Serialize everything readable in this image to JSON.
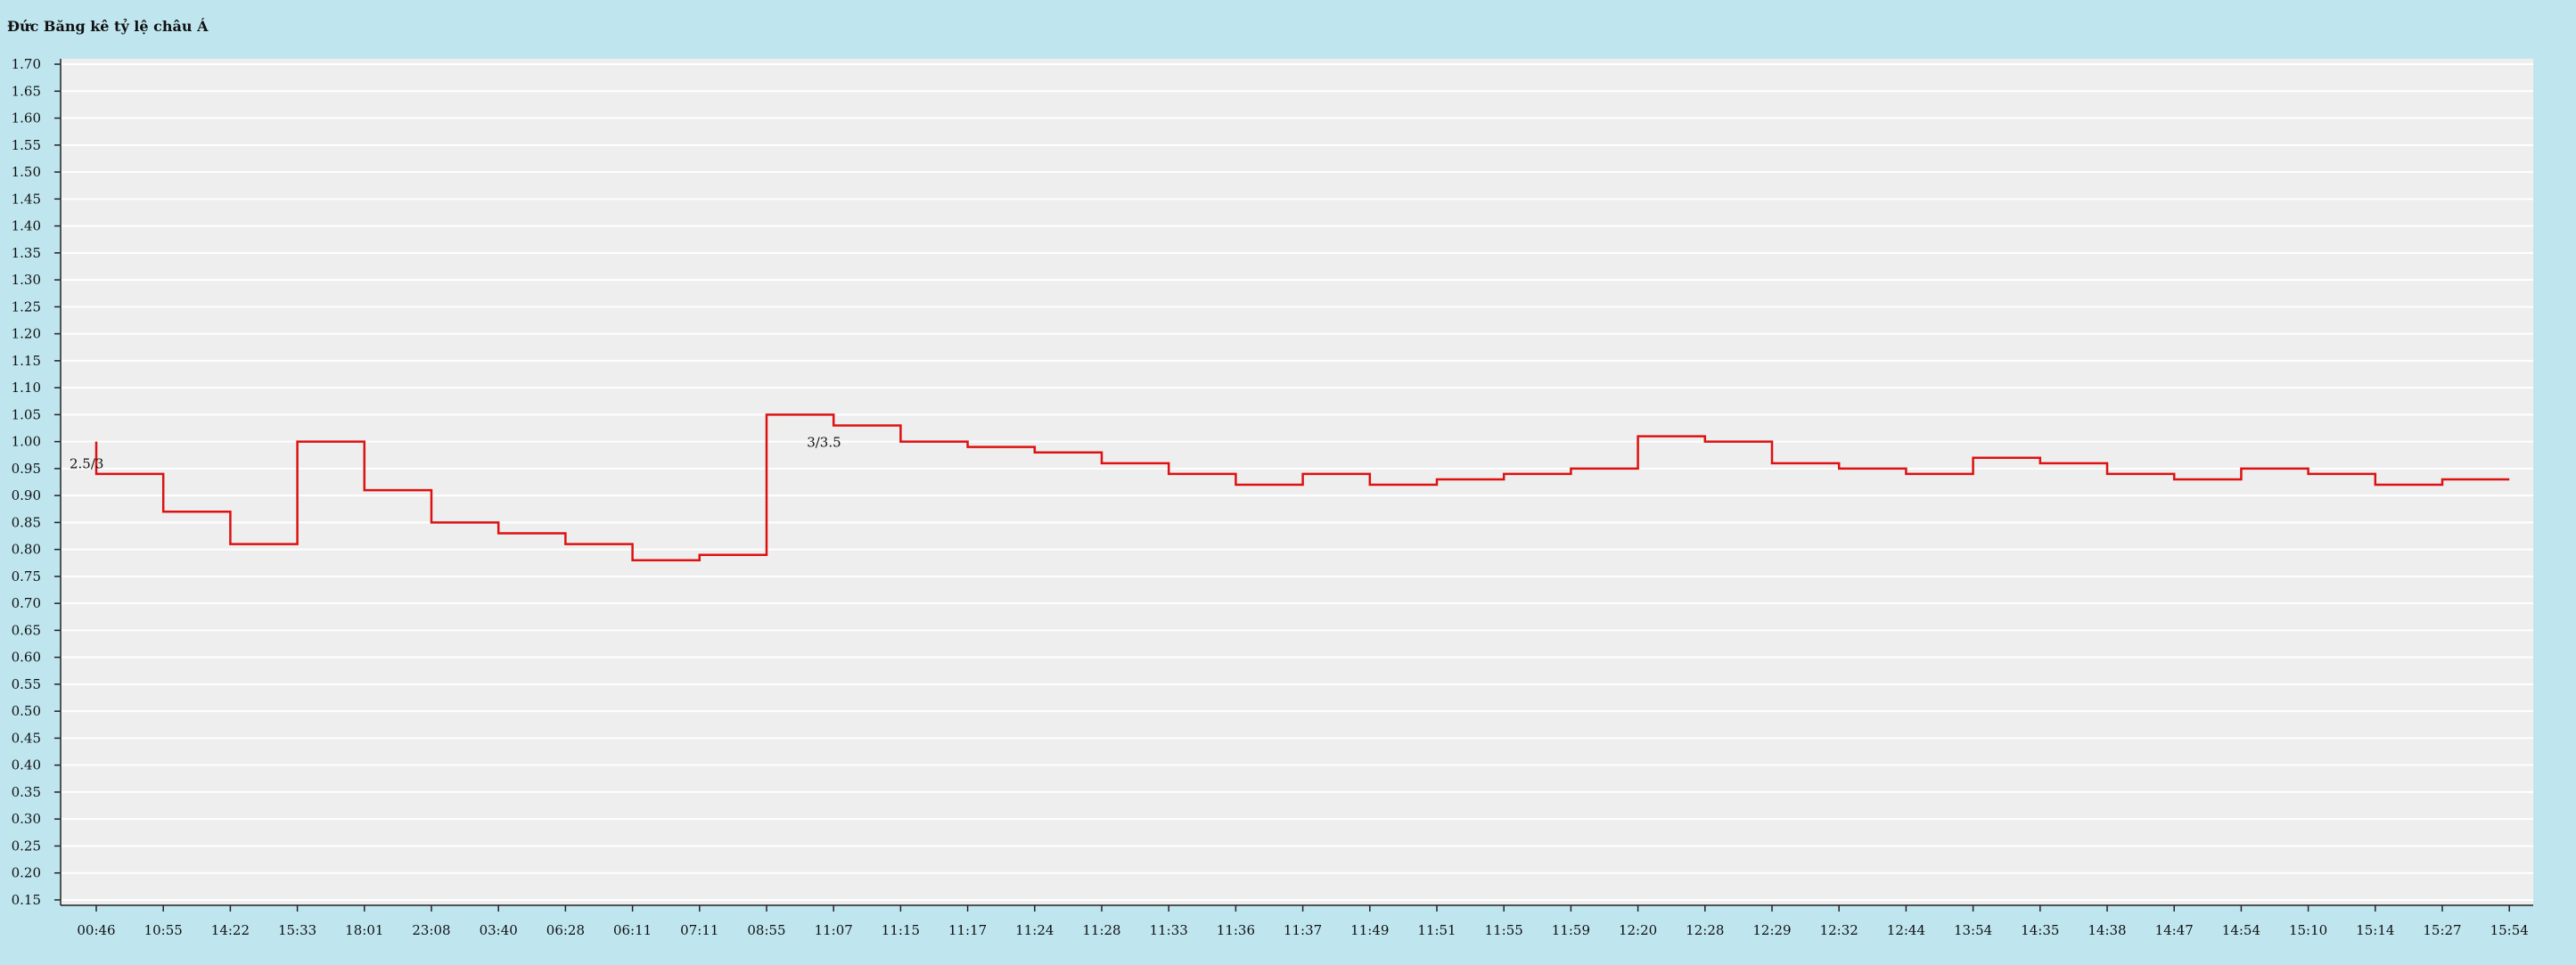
{
  "chart_data": {
    "type": "line",
    "title": "Đức Băng kê tỷ lệ châu Á",
    "xlabel": "",
    "ylabel": "",
    "ylim": [
      0.15,
      1.7
    ],
    "y_ticks": [
      "1.70",
      "1.65",
      "1.60",
      "1.55",
      "1.50",
      "1.45",
      "1.40",
      "1.35",
      "1.30",
      "1.25",
      "1.20",
      "1.15",
      "1.10",
      "1.05",
      "1.00",
      "0.95",
      "0.90",
      "0.85",
      "0.80",
      "0.75",
      "0.70",
      "0.65",
      "0.60",
      "0.55",
      "0.50",
      "0.45",
      "0.40",
      "0.35",
      "0.30",
      "0.25",
      "0.20",
      "0.15"
    ],
    "categories": [
      "00:46",
      "10:55",
      "14:22",
      "15:33",
      "18:01",
      "23:08",
      "03:40",
      "06:28",
      "06:11",
      "07:11",
      "08:55",
      "11:07",
      "11:15",
      "11:17",
      "11:24",
      "11:28",
      "11:33",
      "11:36",
      "11:37",
      "11:49",
      "11:51",
      "11:55",
      "11:59",
      "12:20",
      "12:28",
      "12:29",
      "12:32",
      "12:44",
      "13:54",
      "14:35",
      "14:38",
      "14:47",
      "14:54",
      "15:10",
      "15:14",
      "15:27",
      "15:54"
    ],
    "series": [
      {
        "step": "post",
        "color": "#dd1111",
        "values": [
          0.94,
          0.87,
          0.81,
          1.0,
          0.91,
          0.85,
          0.83,
          0.81,
          0.78,
          0.79,
          1.05,
          1.03,
          1.0,
          0.99,
          0.98,
          0.96,
          0.94,
          0.92,
          0.94,
          0.92,
          0.93,
          0.94,
          0.95,
          1.01,
          1.0,
          0.96,
          0.95,
          0.94,
          0.97,
          0.96,
          0.94,
          0.93,
          0.95,
          0.94,
          0.92,
          0.93,
          0.93
        ]
      }
    ],
    "start_value": 1.0,
    "annotations": [
      {
        "text": "2.5/3",
        "index": 0,
        "value": 0.98
      },
      {
        "text": "3/3.5",
        "index": 11,
        "value": 1.02
      }
    ],
    "grid": true,
    "legend": "none",
    "colors": {
      "page_background": "#bfe6ef",
      "plot_background": "#eeeeee",
      "gridline": "#ffffff",
      "line": "#dd1111"
    }
  }
}
